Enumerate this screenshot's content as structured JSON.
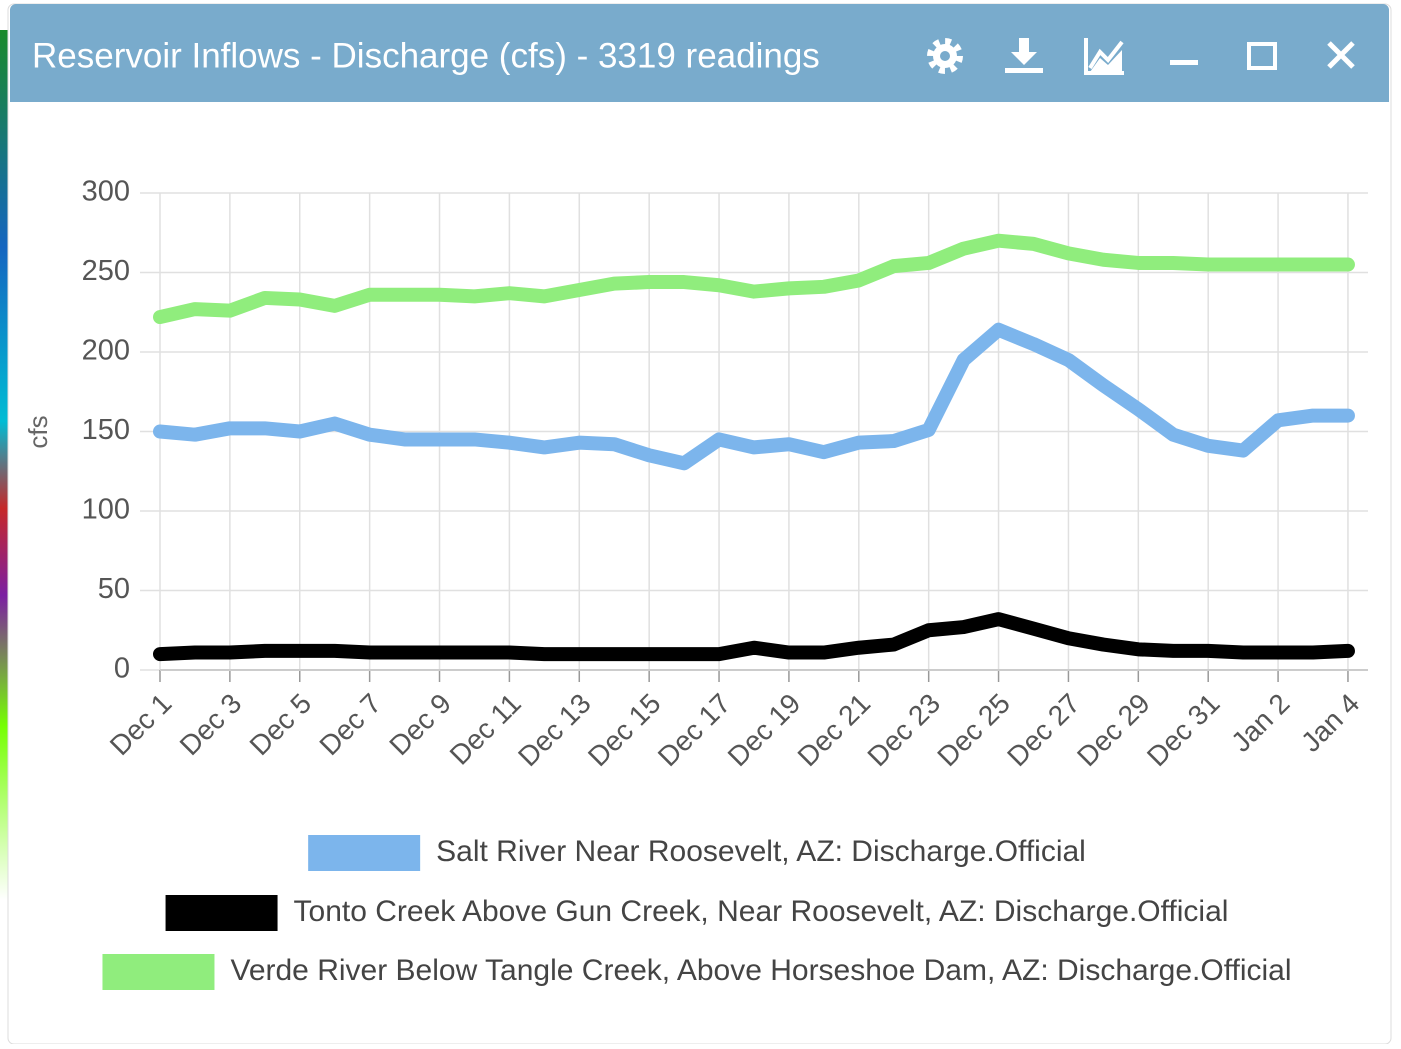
{
  "window": {
    "title": "Reservoir Inflows - Discharge (cfs) - 3319 readings"
  },
  "chart_data": {
    "type": "line",
    "y_label": "cfs",
    "categories": [
      "Dec 1",
      null,
      "Dec 3",
      null,
      "Dec 5",
      null,
      "Dec 7",
      null,
      "Dec 9",
      null,
      "Dec 11",
      null,
      "Dec 13",
      null,
      "Dec 15",
      null,
      "Dec 17",
      null,
      "Dec 19",
      null,
      "Dec 21",
      null,
      "Dec 23",
      null,
      "Dec 25",
      null,
      "Dec 27",
      null,
      "Dec 29",
      null,
      "Dec 31",
      null,
      "Jan 2",
      null,
      "Jan 4"
    ],
    "series": [
      {
        "name": "Salt River Near Roosevelt, AZ: Discharge.Official",
        "color": "#7cb5ec",
        "values": [
          150,
          148,
          152,
          152,
          150,
          155,
          148,
          145,
          145,
          145,
          143,
          140,
          143,
          142,
          135,
          130,
          145,
          140,
          142,
          137,
          143,
          144,
          151,
          195,
          214,
          205,
          195,
          179,
          164,
          148,
          141,
          138,
          157,
          160,
          160
        ]
      },
      {
        "name": "Tonto Creek Above Gun Creek, Near Roosevelt, AZ: Discharge.Official",
        "color": "#000000",
        "values": [
          10,
          11,
          11,
          12,
          12,
          12,
          11,
          11,
          11,
          11,
          11,
          10,
          10,
          10,
          10,
          10,
          10,
          14,
          11,
          11,
          14,
          16,
          25,
          27,
          32,
          26,
          20,
          16,
          13,
          12,
          12,
          11,
          11,
          11,
          12
        ]
      },
      {
        "name": "Verde River Below Tangle Creek, Above Horseshoe Dam, AZ: Discharge.Official",
        "color": "#90ed7d",
        "values": [
          222,
          227,
          226,
          234,
          233,
          229,
          236,
          236,
          236,
          235,
          237,
          235,
          239,
          243,
          244,
          244,
          242,
          238,
          240,
          241,
          245,
          254,
          256,
          265,
          270,
          268,
          262,
          258,
          256,
          256,
          255,
          255,
          255,
          255,
          255
        ]
      }
    ],
    "ylim": [
      0,
      300
    ],
    "yticks": [
      0,
      50,
      100,
      150,
      200,
      250,
      300
    ],
    "grid": true,
    "legend": "bottom"
  }
}
